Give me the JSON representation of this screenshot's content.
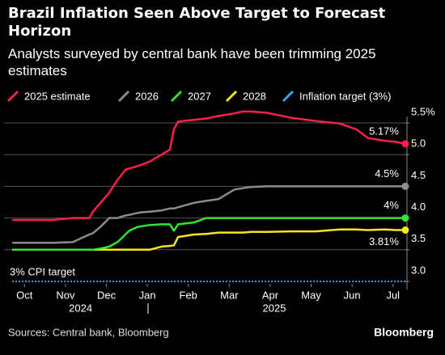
{
  "chart_data": {
    "type": "line",
    "title": "Brazil Inflation Seen Above Target to Forecast Horizon",
    "subtitle": "Analysts surveyed by central bank have been trimming 2025 estimates",
    "source": "Sources: Central bank, Bloomberg",
    "brand": "Bloomberg",
    "target_label": "3% CPI target",
    "x": [
      0.2,
      0.69,
      1.19,
      1.68,
      2.08,
      2.17,
      2.37,
      2.57,
      2.77,
      2.87,
      2.96,
      3.06,
      3.26,
      3.36,
      3.56,
      3.85,
      4.05,
      4.15,
      4.25,
      4.64,
      4.94,
      5.24,
      5.63,
      5.83,
      6.03,
      6.42,
      7.02,
      7.61,
      8.2,
      8.6,
      8.89,
      9.29,
      9.58,
      9.8
    ],
    "xlim": [
      0,
      9.88
    ],
    "xticks": [
      {
        "value": 0.5,
        "label": "Oct"
      },
      {
        "value": 1.5,
        "label": "Nov"
      },
      {
        "value": 2.5,
        "label": "Dec"
      },
      {
        "value": 3.5,
        "label": "Jan"
      },
      {
        "value": 4.5,
        "label": "Feb"
      },
      {
        "value": 5.5,
        "label": "Mar"
      },
      {
        "value": 6.5,
        "label": "Apr"
      },
      {
        "value": 7.5,
        "label": "May"
      },
      {
        "value": 8.5,
        "label": "Jun"
      },
      {
        "value": 9.5,
        "label": "Jul"
      }
    ],
    "year_ticks": [
      {
        "value": 1.87,
        "label": "2024"
      },
      {
        "value": 6.6,
        "label": "2025"
      }
    ],
    "ylim": [
      2.9,
      5.6
    ],
    "yticks": [
      {
        "value": 3.0,
        "label": "3.0"
      },
      {
        "value": 3.5,
        "label": "3.5"
      },
      {
        "value": 4.0,
        "label": "4.0"
      },
      {
        "value": 4.5,
        "label": "4.5"
      },
      {
        "value": 5.0,
        "label": "5.0"
      },
      {
        "value": 5.5,
        "label": "5.5%"
      }
    ],
    "grid": true,
    "series": [
      {
        "name": "2025 estimate",
        "color": "#ff1f4b",
        "end_label": "5.17%",
        "end_label_side": "above",
        "values": [
          3.97,
          3.97,
          3.97,
          4.0,
          4.0,
          4.1,
          4.25,
          4.4,
          4.6,
          4.68,
          4.76,
          4.78,
          4.82,
          4.84,
          4.89,
          5.0,
          5.08,
          5.4,
          5.52,
          5.55,
          5.57,
          5.61,
          5.65,
          5.68,
          5.68,
          5.66,
          5.58,
          5.53,
          5.49,
          5.4,
          5.26,
          5.22,
          5.2,
          5.17
        ]
      },
      {
        "name": "2026",
        "color": "#8c8c8c",
        "end_label": "4.5%",
        "end_label_side": "above",
        "values": [
          3.61,
          3.61,
          3.61,
          3.62,
          3.74,
          3.76,
          3.87,
          4.0,
          4.0,
          4.02,
          4.04,
          4.05,
          4.08,
          4.09,
          4.1,
          4.12,
          4.15,
          4.15,
          4.17,
          4.24,
          4.27,
          4.3,
          4.45,
          4.47,
          4.49,
          4.5,
          4.5,
          4.5,
          4.5,
          4.5,
          4.5,
          4.5,
          4.5,
          4.5
        ]
      },
      {
        "name": "2027",
        "color": "#2ee82e",
        "end_label": "4%",
        "end_label_side": "above",
        "values": [
          3.5,
          3.5,
          3.5,
          3.5,
          3.5,
          3.5,
          3.52,
          3.55,
          3.62,
          3.68,
          3.74,
          3.8,
          3.86,
          3.87,
          3.89,
          3.9,
          3.9,
          3.8,
          3.9,
          3.93,
          4.0,
          4.0,
          4.0,
          4.0,
          4.0,
          4.0,
          4.0,
          4.0,
          4.0,
          4.0,
          4.0,
          4.0,
          4.0,
          4.0
        ]
      },
      {
        "name": "2028",
        "color": "#f5e61c",
        "end_label": "3.81%",
        "end_label_side": "below",
        "values": [
          3.5,
          3.5,
          3.5,
          3.5,
          3.5,
          3.5,
          3.5,
          3.5,
          3.5,
          3.5,
          3.5,
          3.5,
          3.5,
          3.5,
          3.5,
          3.55,
          3.56,
          3.57,
          3.7,
          3.74,
          3.75,
          3.77,
          3.77,
          3.77,
          3.78,
          3.78,
          3.79,
          3.79,
          3.82,
          3.82,
          3.81,
          3.82,
          3.81,
          3.81
        ]
      },
      {
        "name": "Inflation target (3%)",
        "color": "#2fa8e8",
        "dashed": true,
        "values": [
          3.0,
          3.0,
          3.0,
          3.0,
          3.0,
          3.0,
          3.0,
          3.0,
          3.0,
          3.0,
          3.0,
          3.0,
          3.0,
          3.0,
          3.0,
          3.0,
          3.0,
          3.0,
          3.0,
          3.0,
          3.0,
          3.0,
          3.0,
          3.0,
          3.0,
          3.0,
          3.0,
          3.0,
          3.0,
          3.0,
          3.0,
          3.0,
          3.0,
          3.0
        ]
      }
    ]
  }
}
